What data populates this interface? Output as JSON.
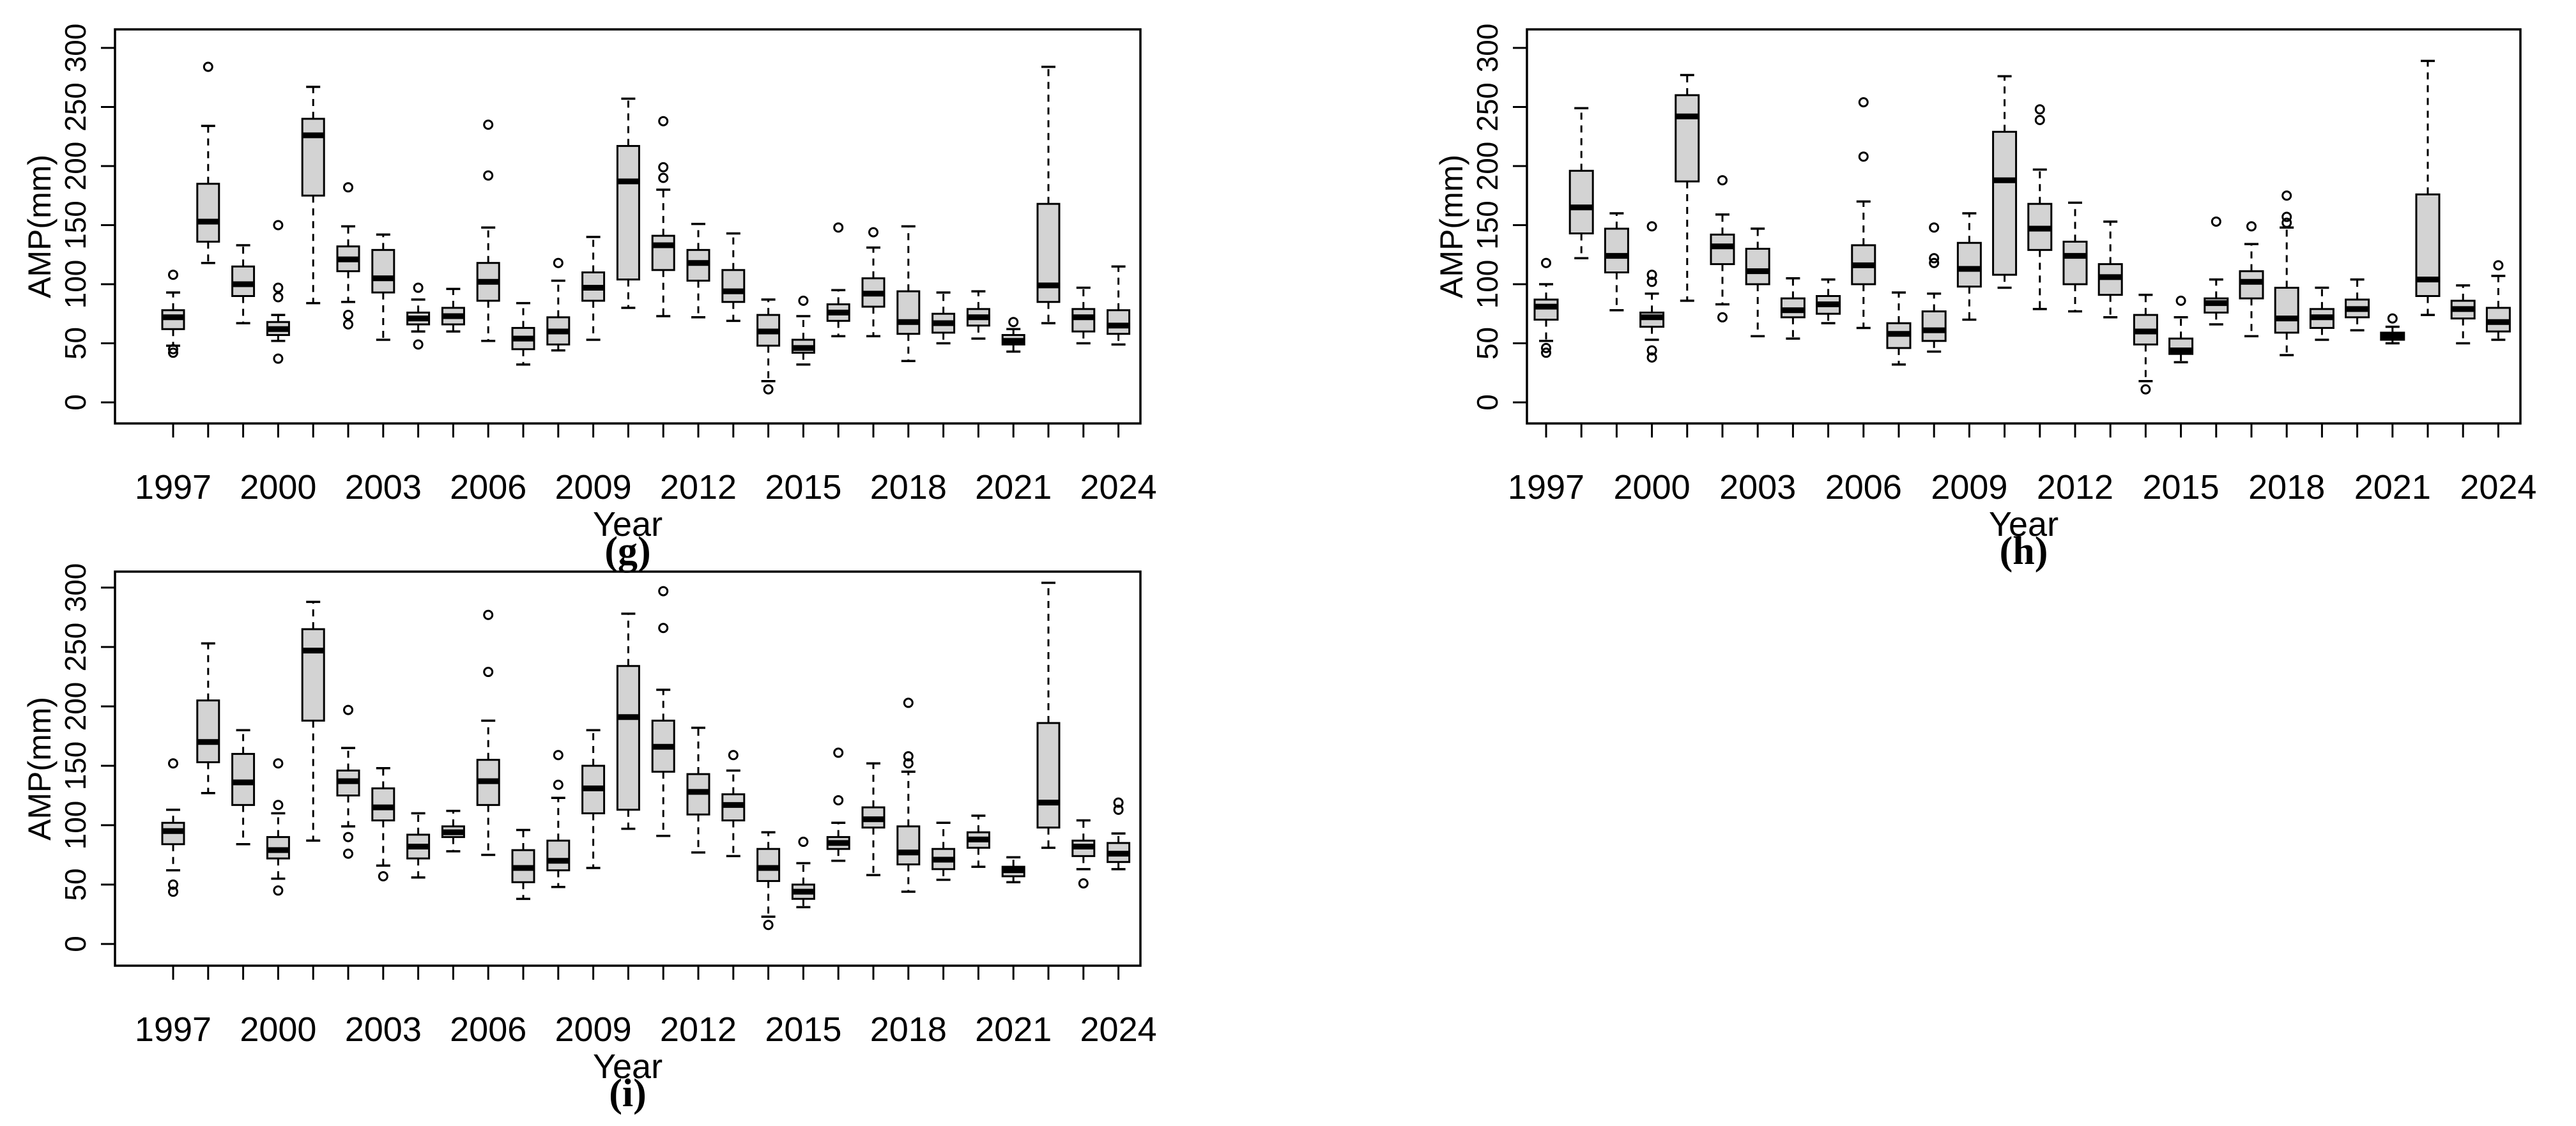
{
  "figure": {
    "background": "#ffffff",
    "description": "Three boxplot panels of annual maximum precipitation AMP(mm) by year, 1997-2024"
  },
  "style": {
    "box_fill": "#d3d3d3",
    "line_color": "#000000",
    "median_color": "#000000",
    "background": "#ffffff"
  },
  "chart_data": [
    {
      "type": "boxplot",
      "panel_label": "(g)",
      "xlabel": "Year",
      "ylabel": "AMP(mm)",
      "ylim": [
        0,
        300
      ],
      "grid": "off",
      "legend": "none",
      "yticks": [
        0,
        50,
        100,
        150,
        200,
        250,
        300
      ],
      "ytick_labels": [
        "0",
        "50",
        "100",
        "150",
        "200",
        "250",
        "300"
      ],
      "xtick_labels": [
        "1997",
        "2000",
        "2003",
        "2006",
        "2009",
        "2012",
        "2015",
        "2018",
        "2021",
        "2024"
      ],
      "boxes": [
        {
          "year": 1997,
          "whislo": 48,
          "q1": 62,
          "med": 72,
          "q3": 78,
          "whishi": 93,
          "outliers": [
            42,
            45,
            108
          ]
        },
        {
          "year": 1998,
          "whislo": 118,
          "q1": 136,
          "med": 153,
          "q3": 185,
          "whishi": 234,
          "outliers": [
            284
          ]
        },
        {
          "year": 1999,
          "whislo": 67,
          "q1": 90,
          "med": 100,
          "q3": 115,
          "whishi": 133,
          "outliers": []
        },
        {
          "year": 2000,
          "whislo": 52,
          "q1": 57,
          "med": 62,
          "q3": 68,
          "whishi": 74,
          "outliers": [
            37,
            89,
            97,
            150
          ]
        },
        {
          "year": 2001,
          "whislo": 84,
          "q1": 175,
          "med": 226,
          "q3": 240,
          "whishi": 267,
          "outliers": []
        },
        {
          "year": 2002,
          "whislo": 85,
          "q1": 111,
          "med": 121,
          "q3": 132,
          "whishi": 149,
          "outliers": [
            66,
            74,
            182
          ]
        },
        {
          "year": 2003,
          "whislo": 53,
          "q1": 93,
          "med": 105,
          "q3": 129,
          "whishi": 142,
          "outliers": []
        },
        {
          "year": 2004,
          "whislo": 60,
          "q1": 66,
          "med": 71,
          "q3": 76,
          "whishi": 87,
          "outliers": [
            49,
            97
          ]
        },
        {
          "year": 2005,
          "whislo": 60,
          "q1": 66,
          "med": 73,
          "q3": 80,
          "whishi": 96,
          "outliers": []
        },
        {
          "year": 2006,
          "whislo": 52,
          "q1": 86,
          "med": 102,
          "q3": 118,
          "whishi": 148,
          "outliers": [
            192,
            235
          ]
        },
        {
          "year": 2007,
          "whislo": 32,
          "q1": 45,
          "med": 54,
          "q3": 63,
          "whishi": 84,
          "outliers": []
        },
        {
          "year": 2008,
          "whislo": 44,
          "q1": 49,
          "med": 60,
          "q3": 72,
          "whishi": 103,
          "outliers": [
            118
          ]
        },
        {
          "year": 2009,
          "whislo": 53,
          "q1": 86,
          "med": 97,
          "q3": 110,
          "whishi": 140,
          "outliers": []
        },
        {
          "year": 2010,
          "whislo": 80,
          "q1": 104,
          "med": 187,
          "q3": 217,
          "whishi": 257,
          "outliers": []
        },
        {
          "year": 2011,
          "whislo": 73,
          "q1": 112,
          "med": 133,
          "q3": 141,
          "whishi": 180,
          "outliers": [
            190,
            199,
            238
          ]
        },
        {
          "year": 2012,
          "whislo": 72,
          "q1": 103,
          "med": 118,
          "q3": 129,
          "whishi": 151,
          "outliers": []
        },
        {
          "year": 2013,
          "whislo": 69,
          "q1": 85,
          "med": 94,
          "q3": 112,
          "whishi": 143,
          "outliers": []
        },
        {
          "year": 2014,
          "whislo": 18,
          "q1": 48,
          "med": 60,
          "q3": 74,
          "whishi": 87,
          "outliers": [
            11
          ]
        },
        {
          "year": 2015,
          "whislo": 32,
          "q1": 42,
          "med": 46,
          "q3": 53,
          "whishi": 73,
          "outliers": [
            86
          ]
        },
        {
          "year": 2016,
          "whislo": 56,
          "q1": 69,
          "med": 76,
          "q3": 83,
          "whishi": 95,
          "outliers": [
            148
          ]
        },
        {
          "year": 2017,
          "whislo": 56,
          "q1": 81,
          "med": 92,
          "q3": 105,
          "whishi": 131,
          "outliers": [
            144
          ]
        },
        {
          "year": 2018,
          "whislo": 35,
          "q1": 58,
          "med": 68,
          "q3": 94,
          "whishi": 149,
          "outliers": []
        },
        {
          "year": 2019,
          "whislo": 50,
          "q1": 59,
          "med": 67,
          "q3": 75,
          "whishi": 93,
          "outliers": []
        },
        {
          "year": 2020,
          "whislo": 54,
          "q1": 65,
          "med": 72,
          "q3": 79,
          "whishi": 94,
          "outliers": []
        },
        {
          "year": 2021,
          "whislo": 43,
          "q1": 49,
          "med": 52,
          "q3": 57,
          "whishi": 62,
          "outliers": [
            68
          ]
        },
        {
          "year": 2022,
          "whislo": 67,
          "q1": 85,
          "med": 99,
          "q3": 168,
          "whishi": 284,
          "outliers": []
        },
        {
          "year": 2023,
          "whislo": 50,
          "q1": 60,
          "med": 72,
          "q3": 79,
          "whishi": 97,
          "outliers": []
        },
        {
          "year": 2024,
          "whislo": 49,
          "q1": 58,
          "med": 65,
          "q3": 78,
          "whishi": 115,
          "outliers": []
        }
      ]
    },
    {
      "type": "boxplot",
      "panel_label": "(h)",
      "xlabel": "Year",
      "ylabel": "AMP(mm)",
      "ylim": [
        0,
        300
      ],
      "grid": "off",
      "legend": "none",
      "yticks": [
        0,
        50,
        100,
        150,
        200,
        250,
        300
      ],
      "ytick_labels": [
        "0",
        "50",
        "100",
        "150",
        "200",
        "250",
        "300"
      ],
      "xtick_labels": [
        "1997",
        "2000",
        "2003",
        "2006",
        "2009",
        "2012",
        "2015",
        "2018",
        "2021",
        "2024"
      ],
      "boxes": [
        {
          "year": 1997,
          "whislo": 52,
          "q1": 70,
          "med": 81,
          "q3": 87,
          "whishi": 100,
          "outliers": [
            42,
            46,
            118
          ]
        },
        {
          "year": 1998,
          "whislo": 122,
          "q1": 143,
          "med": 165,
          "q3": 196,
          "whishi": 249,
          "outliers": []
        },
        {
          "year": 1999,
          "whislo": 78,
          "q1": 110,
          "med": 124,
          "q3": 147,
          "whishi": 160,
          "outliers": []
        },
        {
          "year": 2000,
          "whislo": 53,
          "q1": 64,
          "med": 72,
          "q3": 76,
          "whishi": 92,
          "outliers": [
            38,
            44,
            102,
            108,
            149
          ]
        },
        {
          "year": 2001,
          "whislo": 86,
          "q1": 187,
          "med": 242,
          "q3": 260,
          "whishi": 277,
          "outliers": []
        },
        {
          "year": 2002,
          "whislo": 83,
          "q1": 117,
          "med": 132,
          "q3": 142,
          "whishi": 159,
          "outliers": [
            72,
            188
          ]
        },
        {
          "year": 2003,
          "whislo": 56,
          "q1": 100,
          "med": 111,
          "q3": 130,
          "whishi": 147,
          "outliers": []
        },
        {
          "year": 2004,
          "whislo": 54,
          "q1": 72,
          "med": 78,
          "q3": 88,
          "whishi": 105,
          "outliers": []
        },
        {
          "year": 2005,
          "whislo": 67,
          "q1": 75,
          "med": 83,
          "q3": 90,
          "whishi": 104,
          "outliers": []
        },
        {
          "year": 2006,
          "whislo": 63,
          "q1": 100,
          "med": 116,
          "q3": 133,
          "whishi": 170,
          "outliers": [
            208,
            254
          ]
        },
        {
          "year": 2007,
          "whislo": 32,
          "q1": 46,
          "med": 58,
          "q3": 67,
          "whishi": 93,
          "outliers": []
        },
        {
          "year": 2008,
          "whislo": 43,
          "q1": 52,
          "med": 61,
          "q3": 77,
          "whishi": 92,
          "outliers": [
            118,
            122,
            148
          ]
        },
        {
          "year": 2009,
          "whislo": 70,
          "q1": 98,
          "med": 113,
          "q3": 135,
          "whishi": 160,
          "outliers": []
        },
        {
          "year": 2010,
          "whislo": 97,
          "q1": 108,
          "med": 188,
          "q3": 229,
          "whishi": 276,
          "outliers": []
        },
        {
          "year": 2011,
          "whislo": 79,
          "q1": 129,
          "med": 147,
          "q3": 168,
          "whishi": 197,
          "outliers": [
            239,
            248
          ]
        },
        {
          "year": 2012,
          "whislo": 77,
          "q1": 100,
          "med": 124,
          "q3": 136,
          "whishi": 169,
          "outliers": []
        },
        {
          "year": 2013,
          "whislo": 72,
          "q1": 91,
          "med": 106,
          "q3": 117,
          "whishi": 153,
          "outliers": []
        },
        {
          "year": 2014,
          "whislo": 18,
          "q1": 49,
          "med": 60,
          "q3": 74,
          "whishi": 91,
          "outliers": [
            11
          ]
        },
        {
          "year": 2015,
          "whislo": 34,
          "q1": 41,
          "med": 44,
          "q3": 54,
          "whishi": 72,
          "outliers": [
            86
          ]
        },
        {
          "year": 2016,
          "whislo": 66,
          "q1": 76,
          "med": 84,
          "q3": 88,
          "whishi": 104,
          "outliers": [
            153
          ]
        },
        {
          "year": 2017,
          "whislo": 56,
          "q1": 88,
          "med": 102,
          "q3": 111,
          "whishi": 134,
          "outliers": [
            149
          ]
        },
        {
          "year": 2018,
          "whislo": 40,
          "q1": 59,
          "med": 71,
          "q3": 97,
          "whishi": 148,
          "outliers": [
            152,
            157,
            175
          ]
        },
        {
          "year": 2019,
          "whislo": 53,
          "q1": 63,
          "med": 72,
          "q3": 79,
          "whishi": 97,
          "outliers": []
        },
        {
          "year": 2020,
          "whislo": 61,
          "q1": 72,
          "med": 79,
          "q3": 87,
          "whishi": 104,
          "outliers": []
        },
        {
          "year": 2021,
          "whislo": 50,
          "q1": 53,
          "med": 56,
          "q3": 59,
          "whishi": 64,
          "outliers": [
            71
          ]
        },
        {
          "year": 2022,
          "whislo": 74,
          "q1": 90,
          "med": 104,
          "q3": 176,
          "whishi": 289,
          "outliers": []
        },
        {
          "year": 2023,
          "whislo": 50,
          "q1": 71,
          "med": 79,
          "q3": 86,
          "whishi": 99,
          "outliers": []
        },
        {
          "year": 2024,
          "whislo": 53,
          "q1": 60,
          "med": 68,
          "q3": 80,
          "whishi": 107,
          "outliers": [
            116
          ]
        }
      ]
    },
    {
      "type": "boxplot",
      "panel_label": "(i)",
      "xlabel": "Year",
      "ylabel": "AMP(mm)",
      "ylim": [
        0,
        300
      ],
      "grid": "off",
      "legend": "none",
      "yticks": [
        0,
        50,
        100,
        150,
        200,
        250,
        300
      ],
      "ytick_labels": [
        "0",
        "50",
        "100",
        "150",
        "200",
        "250",
        "300"
      ],
      "xtick_labels": [
        "1997",
        "2000",
        "2003",
        "2006",
        "2009",
        "2012",
        "2015",
        "2018",
        "2021",
        "2024"
      ],
      "boxes": [
        {
          "year": 1997,
          "whislo": 62,
          "q1": 84,
          "med": 95,
          "q3": 102,
          "whishi": 113,
          "outliers": [
            44,
            50,
            152
          ]
        },
        {
          "year": 1998,
          "whislo": 127,
          "q1": 153,
          "med": 170,
          "q3": 205,
          "whishi": 253,
          "outliers": []
        },
        {
          "year": 1999,
          "whislo": 84,
          "q1": 117,
          "med": 136,
          "q3": 160,
          "whishi": 180,
          "outliers": []
        },
        {
          "year": 2000,
          "whislo": 55,
          "q1": 72,
          "med": 79,
          "q3": 90,
          "whishi": 110,
          "outliers": [
            45,
            117,
            152
          ]
        },
        {
          "year": 2001,
          "whislo": 87,
          "q1": 188,
          "med": 247,
          "q3": 265,
          "whishi": 288,
          "outliers": []
        },
        {
          "year": 2002,
          "whislo": 99,
          "q1": 125,
          "med": 137,
          "q3": 146,
          "whishi": 165,
          "outliers": [
            76,
            90,
            197
          ]
        },
        {
          "year": 2003,
          "whislo": 66,
          "q1": 104,
          "med": 115,
          "q3": 131,
          "whishi": 148,
          "outliers": [
            57
          ]
        },
        {
          "year": 2004,
          "whislo": 56,
          "q1": 72,
          "med": 82,
          "q3": 92,
          "whishi": 110,
          "outliers": []
        },
        {
          "year": 2005,
          "whislo": 78,
          "q1": 90,
          "med": 94,
          "q3": 99,
          "whishi": 112,
          "outliers": []
        },
        {
          "year": 2006,
          "whislo": 75,
          "q1": 117,
          "med": 137,
          "q3": 155,
          "whishi": 188,
          "outliers": [
            229,
            277
          ]
        },
        {
          "year": 2007,
          "whislo": 38,
          "q1": 52,
          "med": 64,
          "q3": 79,
          "whishi": 96,
          "outliers": []
        },
        {
          "year": 2008,
          "whislo": 48,
          "q1": 62,
          "med": 70,
          "q3": 87,
          "whishi": 123,
          "outliers": [
            134,
            159
          ]
        },
        {
          "year": 2009,
          "whislo": 64,
          "q1": 110,
          "med": 131,
          "q3": 150,
          "whishi": 180,
          "outliers": []
        },
        {
          "year": 2010,
          "whislo": 97,
          "q1": 113,
          "med": 191,
          "q3": 234,
          "whishi": 278,
          "outliers": []
        },
        {
          "year": 2011,
          "whislo": 91,
          "q1": 145,
          "med": 166,
          "q3": 188,
          "whishi": 214,
          "outliers": [
            266,
            297
          ]
        },
        {
          "year": 2012,
          "whislo": 77,
          "q1": 109,
          "med": 128,
          "q3": 143,
          "whishi": 182,
          "outliers": []
        },
        {
          "year": 2013,
          "whislo": 74,
          "q1": 104,
          "med": 117,
          "q3": 126,
          "whishi": 146,
          "outliers": [
            159
          ]
        },
        {
          "year": 2014,
          "whislo": 23,
          "q1": 53,
          "med": 64,
          "q3": 80,
          "whishi": 94,
          "outliers": [
            16
          ]
        },
        {
          "year": 2015,
          "whislo": 31,
          "q1": 38,
          "med": 44,
          "q3": 50,
          "whishi": 68,
          "outliers": [
            86
          ]
        },
        {
          "year": 2016,
          "whislo": 70,
          "q1": 80,
          "med": 85,
          "q3": 90,
          "whishi": 102,
          "outliers": [
            121,
            161
          ]
        },
        {
          "year": 2017,
          "whislo": 58,
          "q1": 98,
          "med": 105,
          "q3": 115,
          "whishi": 152,
          "outliers": []
        },
        {
          "year": 2018,
          "whislo": 44,
          "q1": 67,
          "med": 77,
          "q3": 99,
          "whishi": 145,
          "outliers": [
            152,
            158,
            203
          ]
        },
        {
          "year": 2019,
          "whislo": 54,
          "q1": 63,
          "med": 71,
          "q3": 80,
          "whishi": 102,
          "outliers": []
        },
        {
          "year": 2020,
          "whislo": 65,
          "q1": 81,
          "med": 88,
          "q3": 94,
          "whishi": 108,
          "outliers": []
        },
        {
          "year": 2021,
          "whislo": 52,
          "q1": 57,
          "med": 62,
          "q3": 65,
          "whishi": 73,
          "outliers": []
        },
        {
          "year": 2022,
          "whislo": 81,
          "q1": 98,
          "med": 119,
          "q3": 186,
          "whishi": 304,
          "outliers": []
        },
        {
          "year": 2023,
          "whislo": 63,
          "q1": 74,
          "med": 82,
          "q3": 87,
          "whishi": 104,
          "outliers": [
            51
          ]
        },
        {
          "year": 2024,
          "whislo": 63,
          "q1": 69,
          "med": 76,
          "q3": 85,
          "whishi": 93,
          "outliers": [
            113,
            119
          ]
        }
      ]
    }
  ]
}
